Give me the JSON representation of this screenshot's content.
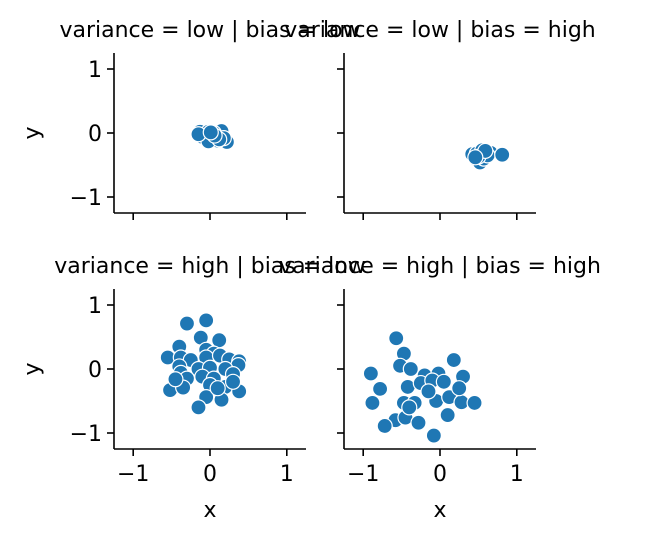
{
  "chart_data": {
    "type": "scatter",
    "xlabel": "x",
    "ylabel": "y",
    "xlim": [
      -1.25,
      1.25
    ],
    "ylim": [
      -1.25,
      1.25
    ],
    "xticks": [
      -1,
      0,
      1
    ],
    "yticks": [
      -1,
      0,
      1
    ],
    "xtick_labels": [
      "−1",
      "0",
      "1"
    ],
    "ytick_labels": [
      "−1",
      "0",
      "1"
    ],
    "point_color": "#1f77b4",
    "grid": false,
    "facets": [
      {
        "title": "variance = low | bias = low",
        "row": 0,
        "col": 0,
        "points": [
          [
            -0.13,
            0.02
          ],
          [
            -0.08,
            -0.05
          ],
          [
            -0.02,
            0.02
          ],
          [
            0.03,
            -0.06
          ],
          [
            0.08,
            -0.02
          ],
          [
            0.15,
            0.03
          ],
          [
            0.22,
            -0.14
          ],
          [
            -0.05,
            -0.1
          ],
          [
            0.1,
            -0.12
          ],
          [
            0.0,
            -0.05
          ],
          [
            -0.1,
            -0.06
          ],
          [
            0.05,
            0.0
          ],
          [
            0.18,
            -0.08
          ],
          [
            -0.02,
            -0.13
          ],
          [
            0.12,
            -0.1
          ],
          [
            -0.15,
            -0.02
          ],
          [
            0.06,
            -0.04
          ],
          [
            0.01,
            0.01
          ]
        ]
      },
      {
        "title": "variance = low | bias = high",
        "row": 0,
        "col": 1,
        "points": [
          [
            0.42,
            -0.33
          ],
          [
            0.48,
            -0.32
          ],
          [
            0.52,
            -0.36
          ],
          [
            0.55,
            -0.3
          ],
          [
            0.6,
            -0.33
          ],
          [
            0.66,
            -0.31
          ],
          [
            0.48,
            -0.42
          ],
          [
            0.52,
            -0.46
          ],
          [
            0.57,
            -0.4
          ],
          [
            0.62,
            -0.35
          ],
          [
            0.81,
            -0.34
          ],
          [
            0.55,
            -0.27
          ],
          [
            0.5,
            -0.37
          ],
          [
            0.59,
            -0.28
          ],
          [
            0.46,
            -0.38
          ]
        ]
      },
      {
        "title": "variance = high | bias = low",
        "row": 1,
        "col": 0,
        "points": [
          [
            -0.05,
            0.76
          ],
          [
            -0.3,
            0.71
          ],
          [
            -0.12,
            0.49
          ],
          [
            0.12,
            0.45
          ],
          [
            -0.4,
            0.35
          ],
          [
            -0.05,
            0.3
          ],
          [
            0.05,
            0.24
          ],
          [
            -0.55,
            0.18
          ],
          [
            -0.38,
            0.18
          ],
          [
            -0.25,
            0.14
          ],
          [
            -0.05,
            0.18
          ],
          [
            0.13,
            0.21
          ],
          [
            0.25,
            0.15
          ],
          [
            0.38,
            0.12
          ],
          [
            0.37,
            0.06
          ],
          [
            -0.4,
            0.04
          ],
          [
            -0.15,
            0.0
          ],
          [
            0.0,
            0.02
          ],
          [
            0.2,
            0.0
          ],
          [
            0.3,
            -0.08
          ],
          [
            -0.38,
            -0.06
          ],
          [
            -0.3,
            -0.15
          ],
          [
            -0.1,
            -0.12
          ],
          [
            0.05,
            -0.15
          ],
          [
            -0.52,
            -0.33
          ],
          [
            -0.35,
            -0.29
          ],
          [
            0.0,
            -0.25
          ],
          [
            0.2,
            -0.28
          ],
          [
            0.38,
            -0.35
          ],
          [
            -0.05,
            -0.44
          ],
          [
            0.15,
            -0.48
          ],
          [
            -0.15,
            -0.6
          ],
          [
            0.1,
            -0.3
          ],
          [
            0.3,
            -0.2
          ],
          [
            -0.45,
            -0.16
          ]
        ]
      },
      {
        "title": "variance = high | bias = high",
        "row": 1,
        "col": 1,
        "points": [
          [
            -0.57,
            0.48
          ],
          [
            -0.47,
            0.24
          ],
          [
            -0.52,
            0.05
          ],
          [
            0.18,
            0.14
          ],
          [
            -0.9,
            -0.07
          ],
          [
            -0.38,
            0.0
          ],
          [
            -0.2,
            -0.1
          ],
          [
            -0.02,
            -0.07
          ],
          [
            0.3,
            -0.12
          ],
          [
            -0.78,
            -0.31
          ],
          [
            -0.42,
            -0.28
          ],
          [
            -0.25,
            -0.22
          ],
          [
            -0.1,
            -0.18
          ],
          [
            0.05,
            -0.2
          ],
          [
            -0.88,
            -0.53
          ],
          [
            -0.47,
            -0.53
          ],
          [
            -0.33,
            -0.53
          ],
          [
            -0.05,
            -0.5
          ],
          [
            0.12,
            -0.44
          ],
          [
            0.28,
            -0.52
          ],
          [
            0.45,
            -0.53
          ],
          [
            -0.58,
            -0.8
          ],
          [
            -0.45,
            -0.76
          ],
          [
            -0.28,
            -0.84
          ],
          [
            0.1,
            -0.72
          ],
          [
            -0.72,
            -0.89
          ],
          [
            -0.08,
            -1.04
          ],
          [
            -0.4,
            -0.6
          ],
          [
            -0.15,
            -0.35
          ],
          [
            0.25,
            -0.3
          ]
        ]
      }
    ]
  }
}
